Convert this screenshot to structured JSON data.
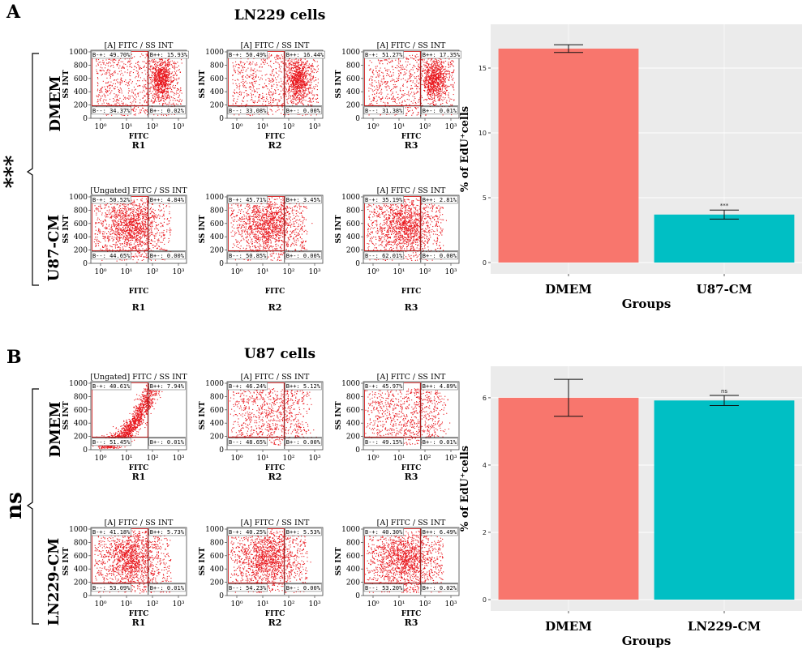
{
  "panels": [
    {
      "label": "A",
      "title": "LN229 cells",
      "stat_label": "***",
      "rows": [
        {
          "label": "DMEM",
          "plots": [
            {
              "title": "[A] FITC / SS INT",
              "rep": "R1",
              "quadrants": [
                "B-+: 49.70%",
                "B++: 15.93%",
                "B--: 34.37%",
                "B+-: 0.02%"
              ],
              "cluster": "right"
            },
            {
              "title": "[A] FITC / SS INT",
              "rep": "R2",
              "quadrants": [
                "B-+: 50.49%",
                "B++: 16.44%",
                "B--: 33.08%",
                "B+-: 0.00%"
              ],
              "cluster": "right"
            },
            {
              "title": "[A] FITC / SS INT",
              "rep": "R3",
              "quadrants": [
                "B-+: 51.27%",
                "B++: 17.35%",
                "B--: 31.38%",
                "B+-: 0.01%"
              ],
              "cluster": "right"
            }
          ]
        },
        {
          "label": "U87-CM",
          "plots": [
            {
              "title": "[Ungated] FITC / SS INT",
              "rep": "R1",
              "quadrants": [
                "B-+: 50.52%",
                "B++: 4.84%",
                "B--: 44.65%",
                "B+-: 0.00%"
              ],
              "cluster": "left"
            },
            {
              "title": "",
              "rep": "R2",
              "quadrants": [
                "B-+: 45.71%",
                "B++: 3.45%",
                "B--: 50.85%",
                "B+-: 0.00%"
              ],
              "cluster": "left"
            },
            {
              "title": "[A] FITC / SS INT",
              "rep": "R3",
              "quadrants": [
                "B-+: 35.19%",
                "B++: 2.81%",
                "B--: 62.01%",
                "B+-: 0.00%"
              ],
              "cluster": "left"
            }
          ]
        }
      ]
    },
    {
      "label": "B",
      "title": "U87 cells",
      "stat_label": "ns",
      "rows": [
        {
          "label": "DMEM",
          "plots": [
            {
              "title": "[Ungated] FITC / SS INT",
              "rep": "R1",
              "quadrants": [
                "B-+: 40.61%",
                "B++: 7.94%",
                "B--: 51.45%",
                "B+-: 0.01%"
              ],
              "cluster": "diagonal"
            },
            {
              "title": "[A] FITC / SS INT",
              "rep": "R2",
              "quadrants": [
                "B-+: 46.24%",
                "B++: 5.12%",
                "B--: 48.65%",
                "B+-: 0.00%"
              ],
              "cluster": "sparse"
            },
            {
              "title": "[A] FITC / SS INT",
              "rep": "R3",
              "quadrants": [
                "B-+: 45.97%",
                "B++: 4.89%",
                "B--: 49.15%",
                "B+-: 0.01%"
              ],
              "cluster": "sparse"
            }
          ]
        },
        {
          "label": "LN229-CM",
          "plots": [
            {
              "title": "[A] FITC / SS INT",
              "rep": "R1",
              "quadrants": [
                "B-+: 41.18%",
                "B++: 5.73%",
                "B--: 53.09%",
                "B+-: 0.01%"
              ],
              "cluster": "left"
            },
            {
              "title": "[A] FITC / SS INT",
              "rep": "R2",
              "quadrants": [
                "B-+: 40.25%",
                "B++: 5.53%",
                "B--: 54.23%",
                "B+-: 0.00%"
              ],
              "cluster": "left"
            },
            {
              "title": "[A] FITC / SS INT",
              "rep": "R3",
              "quadrants": [
                "B-+: 40.30%",
                "B++: 6.49%",
                "B--: 53.20%",
                "B+-: 0.02%"
              ],
              "cluster": "left"
            }
          ]
        }
      ]
    }
  ],
  "flow_axes": {
    "x_label": "FITC",
    "y_label": "SS INT",
    "y_ticks": [
      "0",
      "200",
      "400",
      "600",
      "800",
      "1000"
    ],
    "x_ticks": [
      "10⁰",
      "10¹",
      "10²",
      "10³"
    ]
  },
  "colors": {
    "dot": "#e8151b",
    "gate": "#d42020",
    "bar_dmem": "#f8766d",
    "bar_cm": "#00bfc4",
    "panel_bg": "#ebebeb",
    "grid": "#ffffff"
  },
  "chart_data": [
    {
      "type": "bar",
      "categories": [
        "DMEM",
        "U87-CM"
      ],
      "values": [
        16.5,
        3.7
      ],
      "errors": [
        0.3,
        0.35
      ],
      "significance": [
        "",
        "***"
      ],
      "xlabel": "Groups",
      "ylabel": "% of EdU⁺cells",
      "ylim": [
        0,
        17.5
      ],
      "y_ticks": [
        0,
        5,
        10,
        15
      ],
      "grid": true,
      "legend": "none"
    },
    {
      "type": "bar",
      "categories": [
        "DMEM",
        "LN229-CM"
      ],
      "values": [
        6.0,
        5.92
      ],
      "errors": [
        0.55,
        0.15
      ],
      "significance": [
        "",
        "ns"
      ],
      "xlabel": "Groups",
      "ylabel": "% of EdU⁺cells",
      "ylim": [
        0,
        6.6
      ],
      "y_ticks": [
        0,
        2,
        4,
        6
      ],
      "grid": true,
      "legend": "none"
    }
  ]
}
